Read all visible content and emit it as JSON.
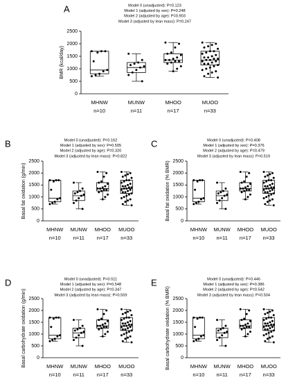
{
  "chart_data": [
    {
      "type": "box",
      "title": "A",
      "annotations": [
        "Model 0 (unadjusted): P=0.123",
        "Model 1 (adjusted by sex): P=0.248",
        "Model 2 (adjusted by age): P=0.903",
        "Model 3 (adjusted by lean mass): P=0.247"
      ],
      "ylabel": "BMR (kcal/day)",
      "categories": [
        "MHNW",
        "MUNW",
        "MHOO",
        "MUOO"
      ],
      "n_labels": [
        "n=10",
        "n=11",
        "n=17",
        "n=33"
      ],
      "ylim": [
        0,
        2500
      ],
      "yticks": [
        0,
        500,
        1000,
        1500,
        2000,
        2500
      ],
      "boxes": [
        {
          "min": 700,
          "q1": 800,
          "median": 950,
          "q3": 1700,
          "max": 1700
        },
        {
          "min": 500,
          "q1": 850,
          "median": 1050,
          "q3": 1250,
          "max": 1600
        },
        {
          "min": 900,
          "q1": 1250,
          "median": 1350,
          "q3": 1600,
          "max": 2050
        },
        {
          "min": 650,
          "q1": 1150,
          "median": 1350,
          "q3": 1700,
          "max": 2050
        }
      ],
      "points": [
        [
          1700,
          1700,
          1700,
          1650,
          1300,
          950,
          900,
          800,
          750,
          700
        ],
        [
          1600,
          1350,
          1250,
          1200,
          1150,
          1100,
          1050,
          950,
          850,
          750,
          500
        ],
        [
          2050,
          2000,
          1850,
          1650,
          1600,
          1550,
          1450,
          1400,
          1350,
          1350,
          1300,
          1300,
          1250,
          1200,
          1100,
          1000,
          900
        ],
        [
          2050,
          2000,
          1950,
          1900,
          1850,
          1800,
          1700,
          1700,
          1650,
          1600,
          1550,
          1500,
          1450,
          1450,
          1400,
          1400,
          1350,
          1350,
          1300,
          1300,
          1250,
          1200,
          1200,
          1150,
          1100,
          1050,
          1000,
          950,
          900,
          850,
          800,
          700,
          650
        ]
      ]
    },
    {
      "type": "box",
      "title": "B",
      "annotations": [
        "Model 0 (unadjusted): P=0.162",
        "Model 1 (adjusted by sex): P=0.505",
        "Model 2 (adjusted by age): P=0.320",
        "Model 3 (adjusted by lean mass): P=0.822"
      ],
      "ylabel": "Basal fat oxidation (g/min)",
      "categories": [
        "MHNW",
        "MUNW",
        "MHOO",
        "MUOO"
      ],
      "n_labels": [
        "n=10",
        "n=11",
        "n=17",
        "n=33"
      ],
      "ylim": [
        0,
        2500
      ],
      "yticks": [
        0,
        500,
        1000,
        1500,
        2000,
        2500
      ],
      "boxes": [
        {
          "min": 700,
          "q1": 800,
          "median": 950,
          "q3": 1700,
          "max": 1700
        },
        {
          "min": 500,
          "q1": 850,
          "median": 1050,
          "q3": 1250,
          "max": 1600
        },
        {
          "min": 900,
          "q1": 1250,
          "median": 1350,
          "q3": 1600,
          "max": 2050
        },
        {
          "min": 650,
          "q1": 1150,
          "median": 1350,
          "q3": 1700,
          "max": 2050
        }
      ],
      "points": [
        [
          1700,
          1700,
          1700,
          1650,
          1300,
          950,
          900,
          800,
          750,
          700
        ],
        [
          1600,
          1350,
          1250,
          1200,
          1150,
          1100,
          1050,
          950,
          850,
          750,
          500
        ],
        [
          2050,
          2000,
          1850,
          1650,
          1600,
          1550,
          1450,
          1400,
          1350,
          1350,
          1300,
          1300,
          1250,
          1200,
          1100,
          1000,
          900
        ],
        [
          2050,
          2000,
          1950,
          1900,
          1850,
          1800,
          1700,
          1700,
          1650,
          1600,
          1550,
          1500,
          1450,
          1450,
          1400,
          1400,
          1350,
          1350,
          1300,
          1300,
          1250,
          1200,
          1200,
          1150,
          1100,
          1050,
          1000,
          950,
          900,
          850,
          800,
          700,
          650
        ]
      ]
    },
    {
      "type": "box",
      "title": "C",
      "annotations": [
        "Model 0 (unadjusted): P=0.408",
        "Model 1 (adjusted by sex): P=0.376",
        "Model 2 (adjusted by age): P=0.479",
        "Model 3 (adjusted by lean mass): P=0.519"
      ],
      "ylabel": "Basal fat oxidation (% BMR)",
      "categories": [
        "MHNW",
        "MUNW",
        "MHOO",
        "MUOO"
      ],
      "n_labels": [
        "n=10",
        "n=11",
        "n=17",
        "n=33"
      ],
      "ylim": [
        0,
        2500
      ],
      "yticks": [
        0,
        500,
        1000,
        1500,
        2000,
        2500
      ],
      "boxes": [
        {
          "min": 700,
          "q1": 800,
          "median": 950,
          "q3": 1700,
          "max": 1700
        },
        {
          "min": 500,
          "q1": 850,
          "median": 1050,
          "q3": 1250,
          "max": 1600
        },
        {
          "min": 900,
          "q1": 1250,
          "median": 1350,
          "q3": 1600,
          "max": 2050
        },
        {
          "min": 650,
          "q1": 1150,
          "median": 1350,
          "q3": 1700,
          "max": 2050
        }
      ],
      "points": [
        [
          1700,
          1700,
          1700,
          1650,
          1300,
          950,
          900,
          800,
          750,
          700
        ],
        [
          1600,
          1350,
          1250,
          1200,
          1150,
          1100,
          1050,
          950,
          850,
          750,
          500
        ],
        [
          2050,
          2000,
          1850,
          1650,
          1600,
          1550,
          1450,
          1400,
          1350,
          1350,
          1300,
          1300,
          1250,
          1200,
          1100,
          1000,
          900
        ],
        [
          2050,
          2000,
          1950,
          1900,
          1850,
          1800,
          1700,
          1700,
          1650,
          1600,
          1550,
          1500,
          1450,
          1450,
          1400,
          1400,
          1350,
          1350,
          1300,
          1300,
          1250,
          1200,
          1200,
          1150,
          1100,
          1050,
          1000,
          950,
          900,
          850,
          800,
          700,
          650
        ]
      ]
    },
    {
      "type": "box",
      "title": "D",
      "annotations": [
        "Model 0 (unadjusted): P=0.511",
        "Model 1 (adjusted by sex): P=0.548",
        "Model 2 (adjusted by age): P=0.347",
        "Model 3 (adjusted by lean mass): P=0.559"
      ],
      "ylabel": "Basal carbohydrate oxidation (g/min)",
      "categories": [
        "MHNW",
        "MUNW",
        "MHOO",
        "MUOO"
      ],
      "n_labels": [
        "n=10",
        "n=11",
        "n=17",
        "n=33"
      ],
      "ylim": [
        0,
        2500
      ],
      "yticks": [
        0,
        500,
        1000,
        1500,
        2000,
        2500
      ],
      "boxes": [
        {
          "min": 700,
          "q1": 800,
          "median": 950,
          "q3": 1700,
          "max": 1700
        },
        {
          "min": 500,
          "q1": 850,
          "median": 1050,
          "q3": 1250,
          "max": 1600
        },
        {
          "min": 900,
          "q1": 1250,
          "median": 1350,
          "q3": 1600,
          "max": 2050
        },
        {
          "min": 650,
          "q1": 1150,
          "median": 1350,
          "q3": 1700,
          "max": 2050
        }
      ],
      "points": [
        [
          1700,
          1700,
          1700,
          1650,
          1300,
          950,
          900,
          800,
          750,
          700
        ],
        [
          1600,
          1350,
          1250,
          1200,
          1150,
          1100,
          1050,
          950,
          850,
          750,
          500
        ],
        [
          2050,
          2000,
          1850,
          1650,
          1600,
          1550,
          1450,
          1400,
          1350,
          1350,
          1300,
          1300,
          1250,
          1200,
          1100,
          1000,
          900
        ],
        [
          2050,
          2000,
          1950,
          1900,
          1850,
          1800,
          1700,
          1700,
          1650,
          1600,
          1550,
          1500,
          1450,
          1450,
          1400,
          1400,
          1350,
          1350,
          1300,
          1300,
          1250,
          1200,
          1200,
          1150,
          1100,
          1050,
          1000,
          950,
          900,
          850,
          800,
          700,
          650
        ]
      ]
    },
    {
      "type": "box",
      "title": "E",
      "annotations": [
        "Model 0 (unadjusted): P=0.446",
        "Model 1 (adjusted by sex): P=0.386",
        "Model 2 (adjusted by age): P=0.542",
        "Model 3 (adjusted by lean mass): P=0.504"
      ],
      "ylabel": "Basal carbohydrate oxidation (% BMR)",
      "categories": [
        "MHNW",
        "MUNW",
        "MHOO",
        "MUOO"
      ],
      "n_labels": [
        "n=10",
        "n=11",
        "n=17",
        "n=33"
      ],
      "ylim": [
        0,
        2500
      ],
      "yticks": [
        0,
        500,
        1000,
        1500,
        2000,
        2500
      ],
      "boxes": [
        {
          "min": 700,
          "q1": 800,
          "median": 950,
          "q3": 1700,
          "max": 1700
        },
        {
          "min": 500,
          "q1": 850,
          "median": 1050,
          "q3": 1250,
          "max": 1600
        },
        {
          "min": 900,
          "q1": 1250,
          "median": 1350,
          "q3": 1600,
          "max": 2050
        },
        {
          "min": 650,
          "q1": 1150,
          "median": 1350,
          "q3": 1700,
          "max": 2050
        }
      ],
      "points": [
        [
          1700,
          1700,
          1700,
          1650,
          1300,
          950,
          900,
          800,
          750,
          700
        ],
        [
          1600,
          1350,
          1250,
          1200,
          1150,
          1100,
          1050,
          950,
          850,
          750,
          500
        ],
        [
          2050,
          2000,
          1850,
          1650,
          1600,
          1550,
          1450,
          1400,
          1350,
          1350,
          1300,
          1300,
          1250,
          1200,
          1100,
          1000,
          900
        ],
        [
          2050,
          2000,
          1950,
          1900,
          1850,
          1800,
          1700,
          1700,
          1650,
          1600,
          1550,
          1500,
          1450,
          1450,
          1400,
          1400,
          1350,
          1350,
          1300,
          1300,
          1250,
          1200,
          1200,
          1150,
          1100,
          1050,
          1000,
          950,
          900,
          850,
          800,
          700,
          650
        ]
      ]
    }
  ]
}
